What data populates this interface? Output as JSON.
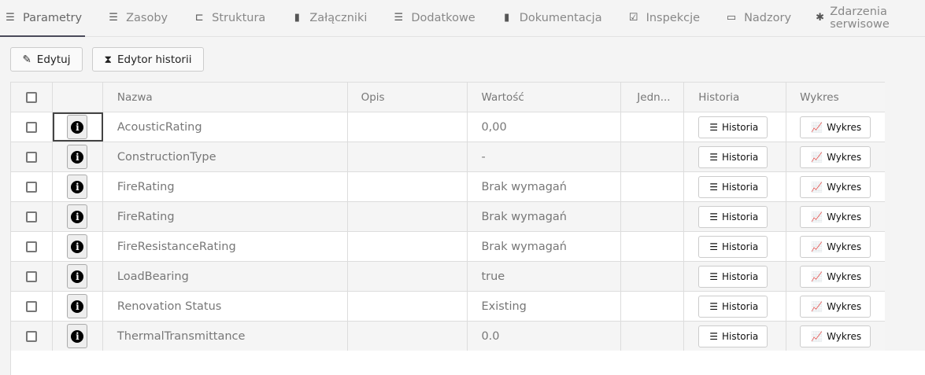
{
  "tabs": [
    {
      "label": "Parametry",
      "icon": "list-icon",
      "glyph": "☰",
      "active": true
    },
    {
      "label": "Zasoby",
      "icon": "list-icon",
      "glyph": "☰"
    },
    {
      "label": "Struktura",
      "icon": "sitemap-icon",
      "glyph": "⊏"
    },
    {
      "label": "Załączniki",
      "icon": "file-icon",
      "glyph": "▮"
    },
    {
      "label": "Dodatkowe",
      "icon": "list-icon",
      "glyph": "☰"
    },
    {
      "label": "Dokumentacja",
      "icon": "bookmark-icon",
      "glyph": "▮"
    },
    {
      "label": "Inspekcje",
      "icon": "check-square-icon",
      "glyph": "☑"
    },
    {
      "label": "Nadzory",
      "icon": "minus-rect-icon",
      "glyph": "▭"
    },
    {
      "label": "Zdarzenia serwisowe",
      "icon": "bug-icon",
      "glyph": "✱"
    }
  ],
  "toolbar": {
    "edit_label": "Edytuj",
    "history_editor_label": "Edytor historii"
  },
  "table": {
    "headers": [
      "",
      "",
      "Nazwa",
      "Opis",
      "Wartość",
      "Jedn...",
      "Historia",
      "Wykres"
    ],
    "history_btn": "Historia",
    "chart_btn": "Wykres",
    "rows": [
      {
        "name": "AcousticRating",
        "desc": "",
        "value": "0,00",
        "unit": ""
      },
      {
        "name": "ConstructionType",
        "desc": "",
        "value": "-",
        "unit": ""
      },
      {
        "name": "FireRating",
        "desc": "",
        "value": "Brak wymagań",
        "unit": ""
      },
      {
        "name": "FireRating",
        "desc": "",
        "value": "Brak wymagań",
        "unit": ""
      },
      {
        "name": "FireResistanceRating",
        "desc": "",
        "value": "Brak wymagań",
        "unit": ""
      },
      {
        "name": "LoadBearing",
        "desc": "",
        "value": "true",
        "unit": ""
      },
      {
        "name": "Renovation Status",
        "desc": "",
        "value": "Existing",
        "unit": ""
      },
      {
        "name": "ThermalTransmittance",
        "desc": "",
        "value": "0.0",
        "unit": ""
      }
    ]
  }
}
